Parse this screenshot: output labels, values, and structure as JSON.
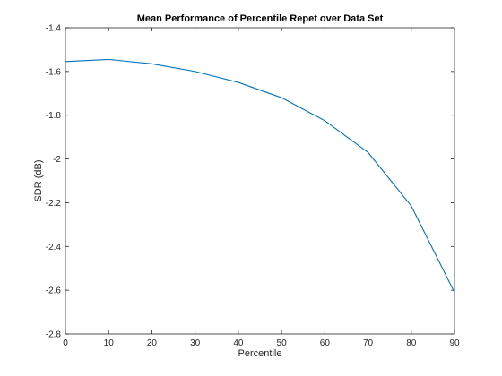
{
  "chart_data": {
    "type": "line",
    "title": "Mean Performance of Percentile Repet over Data Set",
    "xlabel": "Percentile",
    "ylabel": "SDR (dB)",
    "xlim": [
      0,
      90
    ],
    "ylim": [
      -2.8,
      -1.4
    ],
    "xticks": [
      0,
      10,
      20,
      30,
      40,
      50,
      60,
      70,
      80,
      90
    ],
    "yticks": [
      -2.8,
      -2.6,
      -2.4,
      -2.2,
      -2.0,
      -1.8,
      -1.6,
      -1.4
    ],
    "xtick_labels": [
      "0",
      "10",
      "20",
      "30",
      "40",
      "50",
      "60",
      "70",
      "80",
      "90"
    ],
    "ytick_labels": [
      "-2.8",
      "-2.6",
      "-2.4",
      "-2.2",
      "-2",
      "-1.8",
      "-1.6",
      "-1.4"
    ],
    "grid": false,
    "series": [
      {
        "color": "#0072bd",
        "x": [
          0,
          10,
          20,
          30,
          40,
          50,
          60,
          70,
          80,
          90
        ],
        "y": [
          -1.555,
          -1.545,
          -1.565,
          -1.6,
          -1.65,
          -1.72,
          -1.825,
          -1.97,
          -2.215,
          -2.61
        ]
      }
    ]
  }
}
